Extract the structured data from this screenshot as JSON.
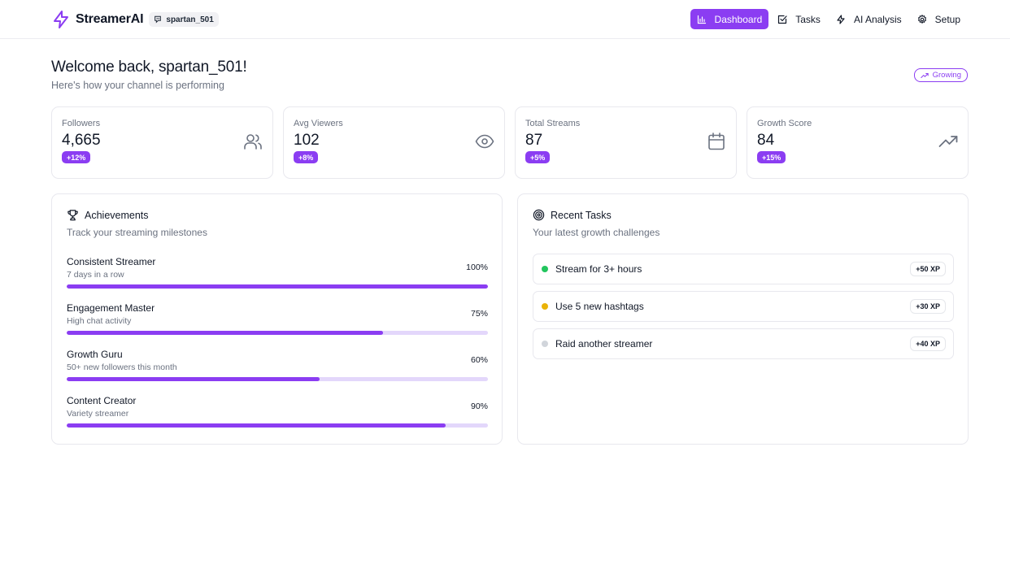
{
  "header": {
    "brand_name": "StreamerAI",
    "username": "spartan_501",
    "nav": [
      {
        "label": "Dashboard",
        "icon": "bar-chart-icon",
        "active": true
      },
      {
        "label": "Tasks",
        "icon": "checkbox-icon",
        "active": false
      },
      {
        "label": "AI Analysis",
        "icon": "lightning-icon",
        "active": false
      },
      {
        "label": "Setup",
        "icon": "gear-icon",
        "active": false
      }
    ]
  },
  "welcome": {
    "title": "Welcome back, spartan_501!",
    "subtitle": "Here's how your channel is performing",
    "badge": "Growing"
  },
  "stats": [
    {
      "label": "Followers",
      "value": "4,665",
      "delta": "+12%",
      "icon": "users-icon"
    },
    {
      "label": "Avg Viewers",
      "value": "102",
      "delta": "+8%",
      "icon": "eye-icon"
    },
    {
      "label": "Total Streams",
      "value": "87",
      "delta": "+5%",
      "icon": "calendar-icon"
    },
    {
      "label": "Growth Score",
      "value": "84",
      "delta": "+15%",
      "icon": "trending-up-icon"
    }
  ],
  "achievements": {
    "title": "Achievements",
    "subtitle": "Track your streaming milestones",
    "items": [
      {
        "name": "Consistent Streamer",
        "desc": "7 days in a row",
        "pct_label": "100%",
        "progress": 1.0
      },
      {
        "name": "Engagement Master",
        "desc": "High chat activity",
        "pct_label": "75%",
        "progress": 0.75
      },
      {
        "name": "Growth Guru",
        "desc": "50+ new followers this month",
        "pct_label": "60%",
        "progress": 0.6
      },
      {
        "name": "Content Creator",
        "desc": "Variety streamer",
        "pct_label": "90%",
        "progress": 0.9
      }
    ]
  },
  "tasks": {
    "title": "Recent Tasks",
    "subtitle": "Your latest growth challenges",
    "items": [
      {
        "label": "Stream for 3+ hours",
        "xp": "+50 XP",
        "status_color": "#22c55e"
      },
      {
        "label": "Use 5 new hashtags",
        "xp": "+30 XP",
        "status_color": "#eab308"
      },
      {
        "label": "Raid another streamer",
        "xp": "+40 XP",
        "status_color": "#d1d5db"
      }
    ]
  },
  "colors": {
    "accent": "#8b3df2",
    "track": "#e3d7fb"
  }
}
